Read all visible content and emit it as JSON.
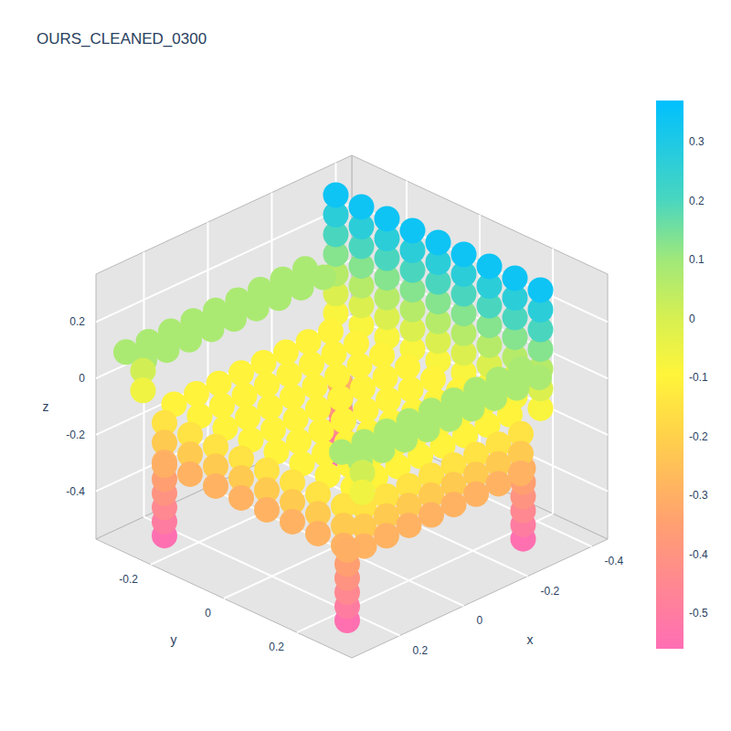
{
  "chart_data": {
    "type": "scatter3d",
    "title": "OURS_CLEANED_0300",
    "xlabel": "x",
    "ylabel": "y",
    "zlabel": "z",
    "xlim": [
      -0.45,
      0.35
    ],
    "ylim": [
      -0.35,
      0.35
    ],
    "zlim": [
      -0.57,
      0.37
    ],
    "xticks": [
      -0.4,
      -0.2,
      0,
      0.2
    ],
    "yticks": [
      -0.2,
      0,
      0.2
    ],
    "zticks": [
      -0.4,
      -0.2,
      0,
      0.2
    ],
    "grid": true,
    "colorbar": {
      "range": [
        -0.56,
        0.37
      ],
      "ticks": [
        -0.5,
        -0.4,
        -0.3,
        -0.2,
        -0.1,
        0,
        0.1,
        0.2,
        0.3
      ]
    },
    "points": [
      [
        -0.3,
        -0.25,
        -0.55
      ],
      [
        -0.3,
        -0.25,
        -0.5
      ],
      [
        -0.3,
        -0.25,
        -0.45
      ],
      [
        -0.3,
        -0.25,
        -0.4
      ],
      [
        -0.3,
        -0.25,
        -0.35
      ],
      [
        -0.3,
        -0.25,
        -0.3
      ],
      [
        -0.3,
        0.25,
        -0.55
      ],
      [
        -0.3,
        0.25,
        -0.5
      ],
      [
        -0.3,
        0.25,
        -0.45
      ],
      [
        -0.3,
        0.25,
        -0.4
      ],
      [
        -0.3,
        0.25,
        -0.35
      ],
      [
        -0.3,
        0.25,
        -0.3
      ],
      [
        -0.32,
        -0.28,
        -0.08
      ],
      [
        -0.32,
        -0.21,
        -0.08
      ],
      [
        -0.32,
        -0.14,
        -0.08
      ],
      [
        -0.32,
        -0.07,
        -0.08
      ],
      [
        -0.32,
        0,
        -0.08
      ],
      [
        -0.32,
        0.07,
        -0.08
      ],
      [
        -0.32,
        0.14,
        -0.08
      ],
      [
        -0.32,
        0.21,
        -0.08
      ],
      [
        -0.32,
        0.28,
        -0.08
      ],
      [
        -0.32,
        -0.28,
        -0.01
      ],
      [
        -0.32,
        -0.21,
        -0.01
      ],
      [
        -0.32,
        -0.14,
        -0.01
      ],
      [
        -0.32,
        -0.07,
        -0.01
      ],
      [
        -0.32,
        0,
        -0.01
      ],
      [
        -0.32,
        0.07,
        -0.01
      ],
      [
        -0.32,
        0.14,
        -0.01
      ],
      [
        -0.32,
        0.21,
        -0.01
      ],
      [
        -0.32,
        0.28,
        -0.01
      ],
      [
        -0.32,
        -0.28,
        0.06
      ],
      [
        -0.32,
        -0.21,
        0.06
      ],
      [
        -0.32,
        -0.14,
        0.06
      ],
      [
        -0.32,
        -0.07,
        0.06
      ],
      [
        -0.32,
        0,
        0.06
      ],
      [
        -0.32,
        0.07,
        0.06
      ],
      [
        -0.32,
        0.14,
        0.06
      ],
      [
        -0.32,
        0.21,
        0.06
      ],
      [
        -0.32,
        0.28,
        0.06
      ],
      [
        -0.32,
        -0.28,
        0.13
      ],
      [
        -0.32,
        -0.21,
        0.13
      ],
      [
        -0.32,
        -0.14,
        0.13
      ],
      [
        -0.32,
        -0.07,
        0.13
      ],
      [
        -0.32,
        0,
        0.13
      ],
      [
        -0.32,
        0.07,
        0.13
      ],
      [
        -0.32,
        0.14,
        0.13
      ],
      [
        -0.32,
        0.21,
        0.13
      ],
      [
        -0.32,
        0.28,
        0.13
      ],
      [
        -0.32,
        -0.28,
        0.2
      ],
      [
        -0.32,
        -0.21,
        0.2
      ],
      [
        -0.32,
        -0.14,
        0.2
      ],
      [
        -0.32,
        -0.07,
        0.2
      ],
      [
        -0.32,
        0,
        0.2
      ],
      [
        -0.32,
        0.07,
        0.2
      ],
      [
        -0.32,
        0.14,
        0.2
      ],
      [
        -0.32,
        0.21,
        0.2
      ],
      [
        -0.32,
        0.28,
        0.2
      ],
      [
        -0.32,
        -0.28,
        0.27
      ],
      [
        -0.32,
        -0.21,
        0.27
      ],
      [
        -0.32,
        -0.14,
        0.27
      ],
      [
        -0.32,
        -0.07,
        0.27
      ],
      [
        -0.32,
        0,
        0.27
      ],
      [
        -0.32,
        0.07,
        0.27
      ],
      [
        -0.32,
        0.14,
        0.27
      ],
      [
        -0.32,
        0.21,
        0.27
      ],
      [
        -0.32,
        0.28,
        0.27
      ],
      [
        -0.32,
        -0.28,
        0.34
      ],
      [
        -0.32,
        -0.21,
        0.34
      ],
      [
        -0.32,
        -0.14,
        0.34
      ],
      [
        -0.32,
        -0.07,
        0.34
      ],
      [
        -0.32,
        0,
        0.34
      ],
      [
        -0.32,
        0.07,
        0.34
      ],
      [
        -0.32,
        0.14,
        0.34
      ],
      [
        -0.32,
        0.21,
        0.34
      ],
      [
        -0.32,
        0.28,
        0.34
      ],
      [
        -0.27,
        -0.25,
        -0.1
      ],
      [
        -0.27,
        -0.18,
        -0.1
      ],
      [
        -0.27,
        -0.11,
        -0.1
      ],
      [
        -0.27,
        -0.04,
        -0.1
      ],
      [
        -0.27,
        0.03,
        -0.1
      ],
      [
        -0.27,
        0.1,
        -0.1
      ],
      [
        -0.27,
        0.17,
        -0.1
      ],
      [
        -0.27,
        0.24,
        -0.1
      ],
      [
        -0.2,
        -0.25,
        -0.1
      ],
      [
        -0.2,
        -0.18,
        -0.1
      ],
      [
        -0.2,
        -0.11,
        -0.1
      ],
      [
        -0.2,
        -0.04,
        -0.1
      ],
      [
        -0.2,
        0.03,
        -0.1
      ],
      [
        -0.2,
        0.1,
        -0.1
      ],
      [
        -0.2,
        0.17,
        -0.1
      ],
      [
        -0.2,
        0.24,
        -0.1
      ],
      [
        -0.13,
        -0.25,
        -0.1
      ],
      [
        -0.13,
        -0.18,
        -0.1
      ],
      [
        -0.13,
        -0.11,
        -0.1
      ],
      [
        -0.13,
        -0.04,
        -0.1
      ],
      [
        -0.13,
        0.03,
        -0.1
      ],
      [
        -0.13,
        0.1,
        -0.1
      ],
      [
        -0.13,
        0.17,
        -0.1
      ],
      [
        -0.13,
        0.24,
        -0.1
      ],
      [
        -0.06,
        -0.25,
        -0.1
      ],
      [
        -0.06,
        -0.18,
        -0.1
      ],
      [
        -0.06,
        -0.11,
        -0.1
      ],
      [
        -0.06,
        -0.04,
        -0.1
      ],
      [
        -0.06,
        0.03,
        -0.1
      ],
      [
        -0.06,
        0.1,
        -0.1
      ],
      [
        -0.06,
        0.17,
        -0.1
      ],
      [
        -0.06,
        0.24,
        -0.1
      ],
      [
        0.01,
        -0.25,
        -0.1
      ],
      [
        0.01,
        -0.18,
        -0.1
      ],
      [
        0.01,
        -0.11,
        -0.1
      ],
      [
        0.01,
        -0.04,
        -0.1
      ],
      [
        0.01,
        0.03,
        -0.1
      ],
      [
        0.01,
        0.1,
        -0.1
      ],
      [
        0.01,
        0.17,
        -0.1
      ],
      [
        0.01,
        0.24,
        -0.1
      ],
      [
        0.08,
        -0.25,
        -0.1
      ],
      [
        0.08,
        -0.18,
        -0.1
      ],
      [
        0.08,
        -0.11,
        -0.1
      ],
      [
        0.08,
        -0.04,
        -0.1
      ],
      [
        0.08,
        0.03,
        -0.1
      ],
      [
        0.08,
        0.1,
        -0.1
      ],
      [
        0.08,
        0.17,
        -0.1
      ],
      [
        0.08,
        0.24,
        -0.1
      ],
      [
        0.15,
        -0.25,
        -0.1
      ],
      [
        0.15,
        -0.18,
        -0.1
      ],
      [
        0.15,
        -0.11,
        -0.1
      ],
      [
        0.15,
        -0.04,
        -0.1
      ],
      [
        0.15,
        0.03,
        -0.1
      ],
      [
        0.15,
        0.1,
        -0.1
      ],
      [
        0.15,
        0.17,
        -0.1
      ],
      [
        0.15,
        0.24,
        -0.1
      ],
      [
        0.22,
        -0.25,
        -0.1
      ],
      [
        0.22,
        -0.18,
        -0.1
      ],
      [
        0.22,
        -0.11,
        -0.1
      ],
      [
        0.22,
        -0.04,
        -0.1
      ],
      [
        0.22,
        0.03,
        -0.1
      ],
      [
        0.22,
        0.1,
        -0.1
      ],
      [
        0.22,
        0.17,
        -0.1
      ],
      [
        0.22,
        0.24,
        -0.1
      ],
      [
        -0.27,
        -0.32,
        0.08
      ],
      [
        -0.2,
        -0.32,
        0.08
      ],
      [
        -0.13,
        -0.32,
        0.08
      ],
      [
        -0.06,
        -0.32,
        0.08
      ],
      [
        0.01,
        -0.32,
        0.08
      ],
      [
        0.08,
        -0.32,
        0.08
      ],
      [
        0.15,
        -0.32,
        0.08
      ],
      [
        0.22,
        -0.32,
        0.08
      ],
      [
        0.29,
        -0.32,
        0.08
      ],
      [
        -0.27,
        -0.27,
        0.08
      ],
      [
        -0.2,
        -0.27,
        0.08
      ],
      [
        -0.13,
        -0.27,
        0.08
      ],
      [
        -0.06,
        -0.27,
        0.08
      ],
      [
        0.01,
        -0.27,
        0.08
      ],
      [
        0.08,
        -0.27,
        0.08
      ],
      [
        0.15,
        -0.27,
        0.08
      ],
      [
        0.22,
        -0.27,
        0.08
      ],
      [
        0.29,
        -0.27,
        0.08
      ],
      [
        0.26,
        -0.3,
        0.01
      ],
      [
        0.26,
        -0.3,
        -0.06
      ],
      [
        -0.27,
        0.27,
        -0.15
      ],
      [
        -0.2,
        0.27,
        -0.15
      ],
      [
        -0.13,
        0.27,
        -0.15
      ],
      [
        -0.06,
        0.27,
        -0.15
      ],
      [
        0.01,
        0.27,
        -0.15
      ],
      [
        0.08,
        0.27,
        -0.15
      ],
      [
        0.15,
        0.27,
        -0.15
      ],
      [
        0.22,
        0.27,
        -0.15
      ],
      [
        -0.27,
        0.27,
        -0.22
      ],
      [
        -0.2,
        0.27,
        -0.22
      ],
      [
        -0.13,
        0.27,
        -0.22
      ],
      [
        -0.06,
        0.27,
        -0.22
      ],
      [
        0.01,
        0.27,
        -0.22
      ],
      [
        0.08,
        0.27,
        -0.22
      ],
      [
        0.15,
        0.27,
        -0.22
      ],
      [
        0.22,
        0.27,
        -0.22
      ],
      [
        -0.27,
        0.27,
        -0.29
      ],
      [
        -0.2,
        0.27,
        -0.29
      ],
      [
        -0.13,
        0.27,
        -0.29
      ],
      [
        -0.06,
        0.27,
        -0.29
      ],
      [
        0.01,
        0.27,
        -0.29
      ],
      [
        0.08,
        0.27,
        -0.29
      ],
      [
        0.15,
        0.27,
        -0.29
      ],
      [
        0.22,
        0.27,
        -0.29
      ],
      [
        0.25,
        -0.25,
        -0.15
      ],
      [
        0.25,
        -0.18,
        -0.15
      ],
      [
        0.25,
        -0.11,
        -0.15
      ],
      [
        0.25,
        -0.04,
        -0.15
      ],
      [
        0.25,
        0.03,
        -0.15
      ],
      [
        0.25,
        0.1,
        -0.15
      ],
      [
        0.25,
        0.17,
        -0.15
      ],
      [
        0.25,
        0.24,
        -0.15
      ],
      [
        0.25,
        -0.25,
        -0.22
      ],
      [
        0.25,
        -0.18,
        -0.22
      ],
      [
        0.25,
        -0.11,
        -0.22
      ],
      [
        0.25,
        -0.04,
        -0.22
      ],
      [
        0.25,
        0.03,
        -0.22
      ],
      [
        0.25,
        0.1,
        -0.22
      ],
      [
        0.25,
        0.17,
        -0.22
      ],
      [
        0.25,
        0.24,
        -0.22
      ],
      [
        0.25,
        -0.25,
        -0.29
      ],
      [
        0.25,
        -0.18,
        -0.29
      ],
      [
        0.25,
        -0.11,
        -0.29
      ],
      [
        0.25,
        -0.04,
        -0.29
      ],
      [
        0.25,
        0.03,
        -0.29
      ],
      [
        0.25,
        0.1,
        -0.29
      ],
      [
        0.25,
        0.17,
        -0.29
      ],
      [
        0.25,
        0.24,
        -0.29
      ],
      [
        0.25,
        -0.25,
        -0.55
      ],
      [
        0.25,
        -0.25,
        -0.5
      ],
      [
        0.25,
        -0.25,
        -0.45
      ],
      [
        0.25,
        -0.25,
        -0.4
      ],
      [
        0.25,
        -0.25,
        -0.35
      ],
      [
        0.25,
        -0.25,
        -0.3
      ],
      [
        0.25,
        0.25,
        -0.55
      ],
      [
        0.25,
        0.25,
        -0.5
      ],
      [
        0.25,
        0.25,
        -0.45
      ],
      [
        0.25,
        0.25,
        -0.4
      ],
      [
        0.25,
        0.25,
        -0.35
      ],
      [
        0.25,
        0.25,
        -0.3
      ],
      [
        -0.27,
        0.27,
        0.08
      ],
      [
        -0.2,
        0.27,
        0.08
      ],
      [
        -0.13,
        0.27,
        0.08
      ],
      [
        -0.06,
        0.27,
        0.08
      ],
      [
        0.01,
        0.27,
        0.08
      ],
      [
        0.08,
        0.27,
        0.08
      ],
      [
        0.15,
        0.27,
        0.08
      ],
      [
        0.22,
        0.27,
        0.08
      ],
      [
        0.29,
        0.27,
        0.08
      ],
      [
        -0.27,
        0.32,
        0.08
      ],
      [
        -0.2,
        0.32,
        0.08
      ],
      [
        -0.13,
        0.32,
        0.08
      ],
      [
        -0.06,
        0.32,
        0.08
      ],
      [
        0.01,
        0.32,
        0.08
      ],
      [
        0.08,
        0.32,
        0.08
      ],
      [
        0.15,
        0.32,
        0.08
      ],
      [
        0.22,
        0.32,
        0.08
      ],
      [
        0.29,
        0.32,
        0.08
      ],
      [
        0.26,
        0.3,
        0.01
      ],
      [
        0.26,
        0.3,
        -0.06
      ]
    ]
  }
}
